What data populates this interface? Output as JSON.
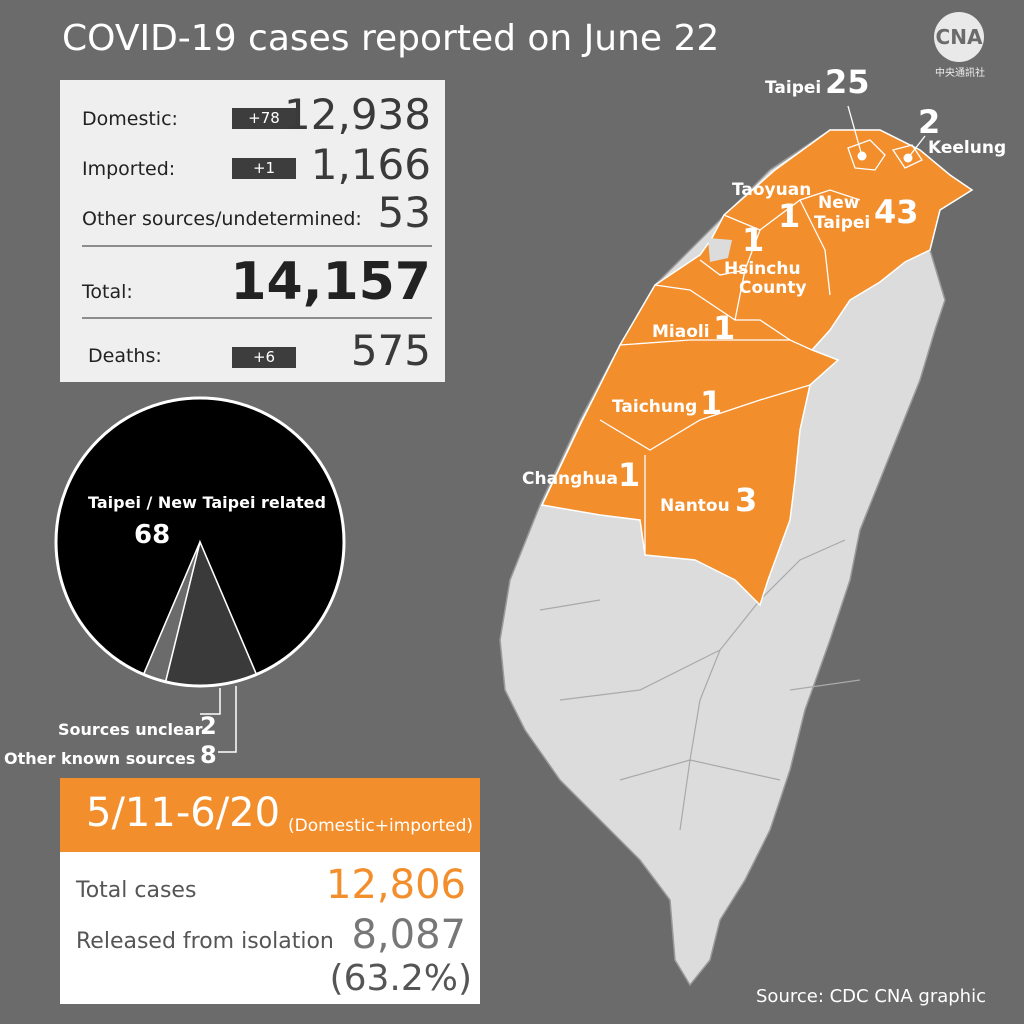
{
  "title": "COVID-19 cases reported on June 22",
  "logo": {
    "text": "CNA",
    "subtext": "中央通訊社",
    "icon": "cna-logo-icon"
  },
  "stats": {
    "domestic": {
      "label": "Domestic:",
      "change": "+78",
      "value": "12,938"
    },
    "imported": {
      "label": "Imported:",
      "change": "+1",
      "value": "1,166"
    },
    "other": {
      "label": "Other sources/undetermined:",
      "value": "53"
    },
    "total": {
      "label": "Total:",
      "value": "14,157"
    },
    "deaths": {
      "label": "Deaths:",
      "change": "+6",
      "value": "575"
    }
  },
  "pie": {
    "main_label": "Taipei / New Taipei related",
    "main_value": "68",
    "unclear_label": "Sources unclear",
    "unclear_value": "2",
    "other_label": "Other known sources",
    "other_value": "8",
    "slices": [
      {
        "name": "Taipei / New Taipei related",
        "value": 68,
        "color": "#000000"
      },
      {
        "name": "Other known sources",
        "value": 8,
        "color": "#3a3a3a"
      },
      {
        "name": "Sources unclear",
        "value": 2,
        "color": "#6b6b6b"
      }
    ]
  },
  "period": {
    "range": "5/11-6/20",
    "note": "(Domestic+imported)",
    "total_label": "Total cases",
    "total_value": "12,806",
    "released_label": "Released from isolation",
    "released_value": "8,087",
    "released_pct": "(63.2%)"
  },
  "map": {
    "colors": {
      "affected": "#f28e2b",
      "unaffected": "#dcdcdc",
      "background": "#6b6b6b"
    },
    "cities": [
      {
        "name": "Taipei",
        "count": "25"
      },
      {
        "name": "Keelung",
        "count": "2"
      },
      {
        "name": "Taoyuan",
        "count": "1"
      },
      {
        "name": "New Taipei",
        "name_line1": "New",
        "name_line2": "Taipei",
        "count": "43"
      },
      {
        "name": "Hsinchu County",
        "name_line1": "Hsinchu",
        "name_line2": "County",
        "count": "1"
      },
      {
        "name": "Miaoli",
        "count": "1"
      },
      {
        "name": "Taichung",
        "count": "1"
      },
      {
        "name": "Changhua",
        "count": "1"
      },
      {
        "name": "Nantou",
        "count": "3"
      }
    ]
  },
  "source": "Source: CDC    CNA graphic"
}
